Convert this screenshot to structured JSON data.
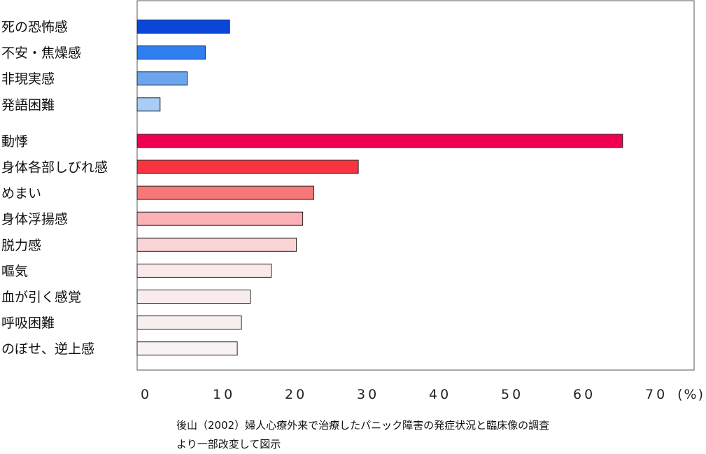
{
  "chart_data": {
    "type": "bar",
    "orientation": "horizontal",
    "categories": [
      "死の恐怖感",
      "不安・焦燥感",
      "非現実感",
      "発語困難",
      "動悸",
      "身体各部しびれ感",
      "めまい",
      "身体浮揚感",
      "脱力感",
      "嘔気",
      "血が引く感覚",
      "呼吸困難",
      "のぼせ、逆上感"
    ],
    "values": [
      13.3,
      9.8,
      7.2,
      3.3,
      69.8,
      31.8,
      25.4,
      23.8,
      22.9,
      19.3,
      16.3,
      15.0,
      14.4
    ],
    "bar_colors": [
      "#0a47d9",
      "#2f7ef0",
      "#6aa5ee",
      "#a9cdf7",
      "#f0004e",
      "#f7343f",
      "#f77878",
      "#fbb1b6",
      "#fbd4d5",
      "#fbe8e8",
      "#f8ecec",
      "#f7eeee",
      "#f9f2f2"
    ],
    "group_gap_after_index": 3,
    "xlim": [
      0,
      80
    ],
    "xticks": [
      "0",
      "10",
      "20",
      "30",
      "40",
      "50",
      "60",
      "70"
    ],
    "unit": "(%)",
    "grid": false,
    "legend": "none"
  },
  "caption": {
    "line1": "後山（2002）婦人心療外来で治療したパニック障害の発症状況と臨床像の調査",
    "line2": "より一部改変して図示"
  }
}
